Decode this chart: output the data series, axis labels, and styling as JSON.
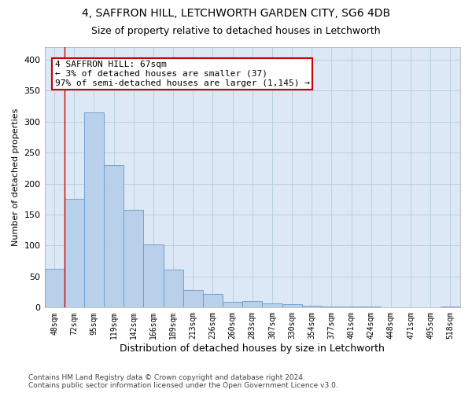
{
  "title1": "4, SAFFRON HILL, LETCHWORTH GARDEN CITY, SG6 4DB",
  "title2": "Size of property relative to detached houses in Letchworth",
  "xlabel": "Distribution of detached houses by size in Letchworth",
  "ylabel": "Number of detached properties",
  "categories": [
    "48sqm",
    "72sqm",
    "95sqm",
    "119sqm",
    "142sqm",
    "166sqm",
    "189sqm",
    "213sqm",
    "236sqm",
    "260sqm",
    "283sqm",
    "307sqm",
    "330sqm",
    "354sqm",
    "377sqm",
    "401sqm",
    "424sqm",
    "448sqm",
    "471sqm",
    "495sqm",
    "518sqm"
  ],
  "values": [
    62,
    175,
    315,
    230,
    157,
    102,
    61,
    28,
    22,
    9,
    11,
    7,
    5,
    3,
    2,
    2,
    2,
    1,
    1,
    1,
    2
  ],
  "bar_color": "#b8d0ea",
  "bar_edge_color": "#6699cc",
  "annotation_text": "4 SAFFRON HILL: 67sqm\n← 3% of detached houses are smaller (37)\n97% of semi-detached houses are larger (1,145) →",
  "annotation_box_color": "#ffffff",
  "annotation_box_edge": "#cc0000",
  "vline_color": "#cc0000",
  "background_color": "#ffffff",
  "plot_bg_color": "#dce8f5",
  "grid_color": "#b8cfe0",
  "ylim": [
    0,
    420
  ],
  "yticks": [
    0,
    50,
    100,
    150,
    200,
    250,
    300,
    350,
    400
  ],
  "footer": "Contains HM Land Registry data © Crown copyright and database right 2024.\nContains public sector information licensed under the Open Government Licence v3.0.",
  "title1_fontsize": 10,
  "title2_fontsize": 9,
  "xlabel_fontsize": 9,
  "ylabel_fontsize": 8,
  "annotation_fontsize": 8,
  "tick_fontsize": 7,
  "footer_fontsize": 6.5
}
